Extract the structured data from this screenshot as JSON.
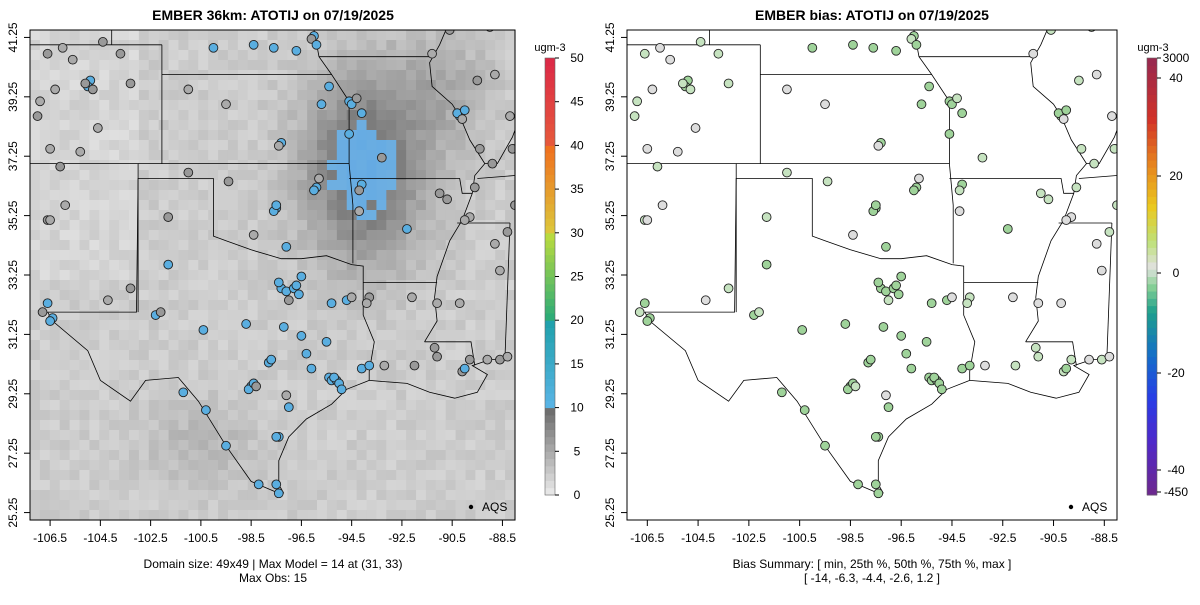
{
  "left_panel": {
    "title": "EMBER 36km: ATOTIJ on 07/19/2025",
    "colorbar_unit": "ugm-3",
    "colorbar_ticks": [
      "0",
      "5",
      "10",
      "15",
      "20",
      "25",
      "30",
      "35",
      "40",
      "45",
      "50"
    ],
    "legend_label": "AQS",
    "footer_line1": "Domain size: 49x49 | Max Model = 14 at (31, 33)",
    "footer_line2": "Max Obs: 15"
  },
  "right_panel": {
    "title": "EMBER bias: ATOTIJ on 07/19/2025",
    "colorbar_unit": "ugm-3",
    "colorbar_ticks": [
      "-450",
      "-40",
      "-20",
      "0",
      "20",
      "40",
      "3000"
    ],
    "legend_label": "AQS",
    "footer_line1": "Bias Summary: [ min, 25th %, 50th %, 75th %, max ]",
    "footer_line2": "[ -14,   -6.3,   -4.4,   -2.6,   1.2 ]"
  },
  "axes": {
    "x_ticks": [
      "-106.5",
      "-104.5",
      "-102.5",
      "-100.5",
      "-98.5",
      "-96.5",
      "-94.5",
      "-92.5",
      "-90.5",
      "-88.5"
    ],
    "y_ticks": [
      "25.25",
      "27.25",
      "29.25",
      "31.25",
      "33.25",
      "35.25",
      "37.25",
      "39.25",
      "41.25"
    ],
    "xlim": [
      -107.3,
      -88.0
    ],
    "ylim": [
      25.0,
      41.5
    ]
  },
  "colors": {
    "obs_blue": "#5aaee0",
    "obs_gray": "#999999",
    "bias_green": "#9fd39a",
    "bias_lightgray": "#dddddd",
    "state_line": "#000000"
  }
}
